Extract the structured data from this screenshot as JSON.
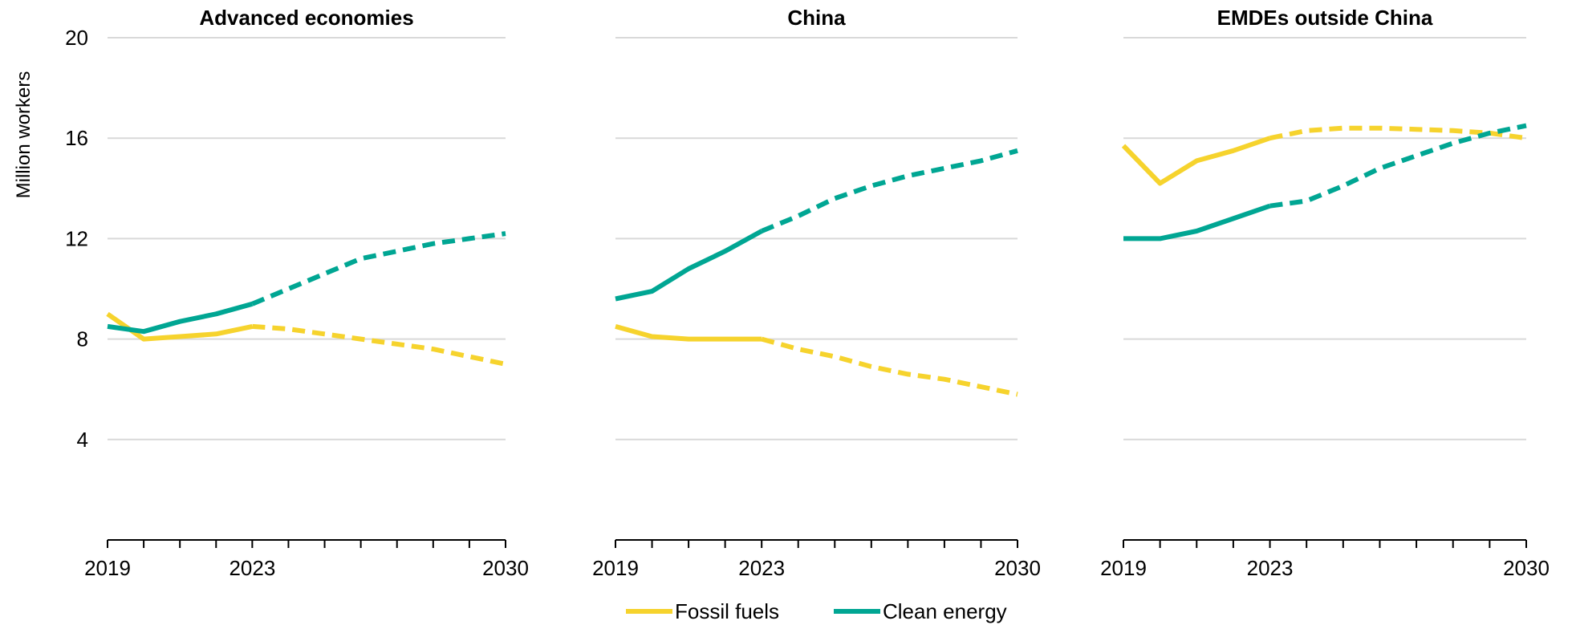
{
  "chart_data": [
    {
      "type": "line",
      "title": "Advanced economies",
      "ylabel": "Million workers",
      "xlabel": "",
      "ylim": [
        0,
        20
      ],
      "yticks": [
        4,
        8,
        12,
        16,
        20
      ],
      "xlim": [
        2019,
        2030
      ],
      "xtick_labels": [
        2019,
        2023,
        2030
      ],
      "series": [
        {
          "name": "Fossil fuels",
          "color": "#f6d32d",
          "historical": [
            [
              2019,
              9.0
            ],
            [
              2020,
              8.0
            ],
            [
              2021,
              8.1
            ],
            [
              2022,
              8.2
            ],
            [
              2023,
              8.5
            ]
          ],
          "projected": [
            [
              2023,
              8.5
            ],
            [
              2024,
              8.4
            ],
            [
              2025,
              8.2
            ],
            [
              2026,
              8.0
            ],
            [
              2027,
              7.8
            ],
            [
              2028,
              7.6
            ],
            [
              2029,
              7.3
            ],
            [
              2030,
              7.0
            ]
          ]
        },
        {
          "name": "Clean energy",
          "color": "#00a693",
          "historical": [
            [
              2019,
              8.5
            ],
            [
              2020,
              8.3
            ],
            [
              2021,
              8.7
            ],
            [
              2022,
              9.0
            ],
            [
              2023,
              9.4
            ]
          ],
          "projected": [
            [
              2023,
              9.4
            ],
            [
              2024,
              10.0
            ],
            [
              2025,
              10.6
            ],
            [
              2026,
              11.2
            ],
            [
              2027,
              11.5
            ],
            [
              2028,
              11.8
            ],
            [
              2029,
              12.0
            ],
            [
              2030,
              12.2
            ]
          ]
        }
      ]
    },
    {
      "type": "line",
      "title": "China",
      "ylim": [
        0,
        20
      ],
      "yticks": [
        4,
        8,
        12,
        16,
        20
      ],
      "xlim": [
        2019,
        2030
      ],
      "xtick_labels": [
        2019,
        2023,
        2030
      ],
      "series": [
        {
          "name": "Fossil fuels",
          "color": "#f6d32d",
          "historical": [
            [
              2019,
              8.5
            ],
            [
              2020,
              8.1
            ],
            [
              2021,
              8.0
            ],
            [
              2022,
              8.0
            ],
            [
              2023,
              8.0
            ]
          ],
          "projected": [
            [
              2023,
              8.0
            ],
            [
              2024,
              7.6
            ],
            [
              2025,
              7.3
            ],
            [
              2026,
              6.9
            ],
            [
              2027,
              6.6
            ],
            [
              2028,
              6.4
            ],
            [
              2029,
              6.1
            ],
            [
              2030,
              5.8
            ]
          ]
        },
        {
          "name": "Clean energy",
          "color": "#00a693",
          "historical": [
            [
              2019,
              9.6
            ],
            [
              2020,
              9.9
            ],
            [
              2021,
              10.8
            ],
            [
              2022,
              11.5
            ],
            [
              2023,
              12.3
            ]
          ],
          "projected": [
            [
              2023,
              12.3
            ],
            [
              2024,
              12.9
            ],
            [
              2025,
              13.6
            ],
            [
              2026,
              14.1
            ],
            [
              2027,
              14.5
            ],
            [
              2028,
              14.8
            ],
            [
              2029,
              15.1
            ],
            [
              2030,
              15.5
            ]
          ]
        }
      ]
    },
    {
      "type": "line",
      "title": "EMDEs outside China",
      "ylim": [
        0,
        20
      ],
      "yticks": [
        4,
        8,
        12,
        16,
        20
      ],
      "xlim": [
        2019,
        2030
      ],
      "xtick_labels": [
        2019,
        2023,
        2030
      ],
      "series": [
        {
          "name": "Fossil fuels",
          "color": "#f6d32d",
          "historical": [
            [
              2019,
              15.7
            ],
            [
              2020,
              14.2
            ],
            [
              2021,
              15.1
            ],
            [
              2022,
              15.5
            ],
            [
              2023,
              16.0
            ]
          ],
          "projected": [
            [
              2023,
              16.0
            ],
            [
              2024,
              16.3
            ],
            [
              2025,
              16.4
            ],
            [
              2026,
              16.4
            ],
            [
              2027,
              16.35
            ],
            [
              2028,
              16.3
            ],
            [
              2029,
              16.2
            ],
            [
              2030,
              16.0
            ]
          ]
        },
        {
          "name": "Clean energy",
          "color": "#00a693",
          "historical": [
            [
              2019,
              12.0
            ],
            [
              2020,
              12.0
            ],
            [
              2021,
              12.3
            ],
            [
              2022,
              12.8
            ],
            [
              2023,
              13.3
            ]
          ],
          "projected": [
            [
              2023,
              13.3
            ],
            [
              2024,
              13.5
            ],
            [
              2025,
              14.1
            ],
            [
              2026,
              14.8
            ],
            [
              2027,
              15.3
            ],
            [
              2028,
              15.8
            ],
            [
              2029,
              16.2
            ],
            [
              2030,
              16.5
            ]
          ]
        }
      ]
    }
  ],
  "legend": {
    "position": "bottom",
    "items": [
      {
        "label": "Fossil fuels",
        "color": "#f6d32d"
      },
      {
        "label": "Clean energy",
        "color": "#00a693"
      }
    ]
  }
}
